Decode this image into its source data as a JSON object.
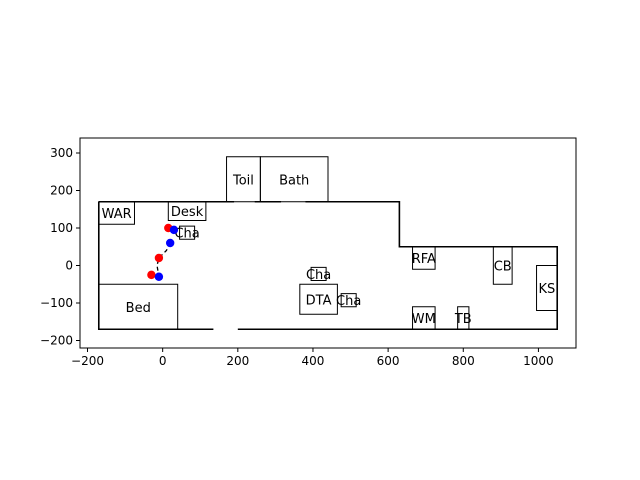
{
  "chart_data": {
    "type": "scatter",
    "xlim": [
      -220,
      1100
    ],
    "ylim": [
      -220,
      340
    ],
    "x_ticks": [
      -200,
      0,
      200,
      400,
      600,
      800,
      1000
    ],
    "y_ticks": [
      -200,
      -100,
      0,
      100,
      200,
      300
    ],
    "x_tick_labels": [
      "−200",
      "0",
      "200",
      "400",
      "600",
      "800",
      "1000"
    ],
    "y_tick_labels": [
      "−200",
      "−100",
      "0",
      "100",
      "200",
      "300"
    ],
    "floor_outline": [
      [
        -170,
        170
      ],
      [
        630,
        170
      ],
      [
        630,
        50
      ],
      [
        1050,
        50
      ],
      [
        1050,
        -170
      ],
      [
        -170,
        -170
      ],
      [
        -170,
        170
      ]
    ],
    "doors": [
      {
        "x1": 190,
        "x2": 245,
        "y": 170
      },
      {
        "x1": 315,
        "x2": 380,
        "y": 170
      },
      {
        "x1": 135,
        "x2": 200,
        "y": -170
      }
    ],
    "rooms": [
      {
        "label": "WAR",
        "x0": -170,
        "y0": 110,
        "x1": -75,
        "y1": 170
      },
      {
        "label": "Desk",
        "x0": 15,
        "y0": 120,
        "x1": 115,
        "y1": 170
      },
      {
        "label": "Cha",
        "x0": 45,
        "y0": 70,
        "x1": 85,
        "y1": 105
      },
      {
        "label": "Toil",
        "x0": 170,
        "y0": 170,
        "x1": 260,
        "y1": 290
      },
      {
        "label": "Bath",
        "x0": 260,
        "y0": 170,
        "x1": 440,
        "y1": 290
      },
      {
        "label": "Bed",
        "x0": -170,
        "y0": -170,
        "x1": 40,
        "y1": -50
      },
      {
        "label": "Cha",
        "x0": 395,
        "y0": -40,
        "x1": 435,
        "y1": -5
      },
      {
        "label": "DTA",
        "x0": 365,
        "y0": -130,
        "x1": 465,
        "y1": -50
      },
      {
        "label": "Cha",
        "x0": 475,
        "y0": -110,
        "x1": 515,
        "y1": -75
      },
      {
        "label": "RFA",
        "x0": 665,
        "y0": -10,
        "x1": 725,
        "y1": 50
      },
      {
        "label": "CB",
        "x0": 880,
        "y0": -50,
        "x1": 930,
        "y1": 50
      },
      {
        "label": "KS",
        "x0": 995,
        "y0": -120,
        "x1": 1050,
        "y1": 0
      },
      {
        "label": "WM",
        "x0": 665,
        "y0": -170,
        "x1": 725,
        "y1": -110
      },
      {
        "label": "TB",
        "x0": 785,
        "y0": -170,
        "x1": 815,
        "y1": -110
      }
    ],
    "series": [
      {
        "color": "#ff0000",
        "points": [
          [
            15,
            100
          ],
          [
            -10,
            20
          ],
          [
            -30,
            -25
          ]
        ]
      },
      {
        "color": "#0000ff",
        "points": [
          [
            30,
            95
          ],
          [
            20,
            60
          ],
          [
            -10,
            -30
          ]
        ]
      }
    ],
    "paths": [
      {
        "style": "dashed",
        "points": [
          [
            15,
            100
          ],
          [
            30,
            95
          ]
        ]
      },
      {
        "style": "dashed",
        "points": [
          [
            20,
            60
          ],
          [
            10,
            40
          ],
          [
            -10,
            20
          ],
          [
            -15,
            0
          ],
          [
            -10,
            -30
          ]
        ]
      }
    ]
  }
}
